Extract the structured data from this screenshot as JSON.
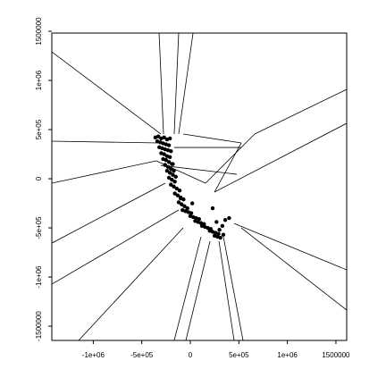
{
  "chart_data": {
    "type": "scatter",
    "xlim": [
      -1427000,
      1611000
    ],
    "ylim": [
      -1645000,
      1482000
    ],
    "xticks": [
      {
        "value": -1000000,
        "label": "-1e+06"
      },
      {
        "value": -500000,
        "label": "-5e+05"
      },
      0,
      {
        "value": 500000,
        "label": "5e+05"
      },
      {
        "value": 1000000,
        "label": "1e+06"
      },
      1500000
    ],
    "yticks": [
      {
        "value": -1500000,
        "label": "-1500000"
      },
      {
        "value": -1000000,
        "label": "-1e+06"
      },
      {
        "value": -500000,
        "label": "-5e+05"
      },
      0,
      {
        "value": 500000,
        "label": "5e+05"
      },
      {
        "value": 1000000,
        "label": "1e+06"
      },
      1500000
    ],
    "color": "#000000",
    "points": [
      [
        -360000,
        420000
      ],
      [
        -330000,
        430000
      ],
      [
        -300000,
        410000
      ],
      [
        -270000,
        420000
      ],
      [
        -240000,
        400000
      ],
      [
        -210000,
        410000
      ],
      [
        -340000,
        380000
      ],
      [
        -310000,
        370000
      ],
      [
        -280000,
        360000
      ],
      [
        -250000,
        350000
      ],
      [
        -220000,
        340000
      ],
      [
        -320000,
        320000
      ],
      [
        -290000,
        310000
      ],
      [
        -260000,
        300000
      ],
      [
        -230000,
        290000
      ],
      [
        -200000,
        280000
      ],
      [
        -300000,
        260000
      ],
      [
        -270000,
        250000
      ],
      [
        -240000,
        230000
      ],
      [
        -210000,
        220000
      ],
      [
        -280000,
        200000
      ],
      [
        -250000,
        190000
      ],
      [
        -220000,
        170000
      ],
      [
        -190000,
        150000
      ],
      [
        -260000,
        140000
      ],
      [
        -230000,
        120000
      ],
      [
        -200000,
        100000
      ],
      [
        -170000,
        80000
      ],
      [
        -240000,
        80000
      ],
      [
        -210000,
        60000
      ],
      [
        -180000,
        40000
      ],
      [
        -150000,
        20000
      ],
      [
        -220000,
        10000
      ],
      [
        -190000,
        -10000
      ],
      [
        -160000,
        -30000
      ],
      [
        -200000,
        -60000
      ],
      [
        -170000,
        -80000
      ],
      [
        -140000,
        -100000
      ],
      [
        -110000,
        -120000
      ],
      [
        -160000,
        -150000
      ],
      [
        -130000,
        -170000
      ],
      [
        -100000,
        -190000
      ],
      [
        -70000,
        -210000
      ],
      [
        -120000,
        -240000
      ],
      [
        -90000,
        -260000
      ],
      [
        -60000,
        -280000
      ],
      [
        -30000,
        -300000
      ],
      [
        -80000,
        -320000
      ],
      [
        -50000,
        -330000
      ],
      [
        -20000,
        -340000
      ],
      [
        10000,
        -350000
      ],
      [
        0,
        -380000
      ],
      [
        30000,
        -390000
      ],
      [
        60000,
        -400000
      ],
      [
        90000,
        -410000
      ],
      [
        50000,
        -430000
      ],
      [
        80000,
        -440000
      ],
      [
        110000,
        -450000
      ],
      [
        140000,
        -460000
      ],
      [
        120000,
        -480000
      ],
      [
        150000,
        -490000
      ],
      [
        180000,
        -500000
      ],
      [
        210000,
        -510000
      ],
      [
        200000,
        -530000
      ],
      [
        230000,
        -540000
      ],
      [
        260000,
        -550000
      ],
      [
        290000,
        -560000
      ],
      [
        250000,
        -580000
      ],
      [
        280000,
        -590000
      ],
      [
        310000,
        -600000
      ],
      [
        340000,
        -570000
      ],
      [
        300000,
        -520000
      ],
      [
        330000,
        -480000
      ],
      [
        270000,
        -440000
      ],
      [
        360000,
        -420000
      ],
      [
        400000,
        -400000
      ],
      [
        -100000,
        -200000
      ],
      [
        20000,
        -250000
      ],
      [
        230000,
        -300000
      ],
      [
        -180000,
        150000
      ]
    ],
    "segments": [
      [
        -1427000,
        1291000,
        -304000,
        455000
      ],
      [
        -322000,
        1482000,
        -276000,
        455000
      ],
      [
        -120000,
        1482000,
        -166000,
        455000
      ],
      [
        28000,
        1482000,
        -120000,
        455000
      ],
      [
        -1427000,
        382000,
        -322000,
        364000
      ],
      [
        -1427000,
        -45000,
        -350000,
        182000
      ],
      [
        -1427000,
        -655000,
        -258000,
        -45000
      ],
      [
        -1427000,
        -1073000,
        -120000,
        -318000
      ],
      [
        -1151000,
        -1645000,
        -74000,
        -500000
      ],
      [
        -166000,
        -1645000,
        110000,
        -591000
      ],
      [
        -46000,
        -1645000,
        203000,
        -636000
      ],
      [
        451000,
        -1645000,
        295000,
        -636000
      ],
      [
        543000,
        -1645000,
        341000,
        -591000
      ],
      [
        1611000,
        -927000,
        451000,
        -455000
      ],
      [
        1611000,
        -1336000,
        525000,
        -500000
      ],
      [
        1611000,
        909000,
        663000,
        455000
      ],
      [
        663000,
        455000,
        157000,
        -45000
      ],
      [
        1611000,
        564000,
        249000,
        -136000
      ],
      [
        -74000,
        455000,
        525000,
        364000
      ],
      [
        -166000,
        318000,
        525000,
        318000
      ],
      [
        -304000,
        136000,
        479000,
        45000
      ],
      [
        525000,
        364000,
        249000,
        -136000
      ],
      [
        -350000,
        182000,
        157000,
        -45000
      ]
    ]
  }
}
